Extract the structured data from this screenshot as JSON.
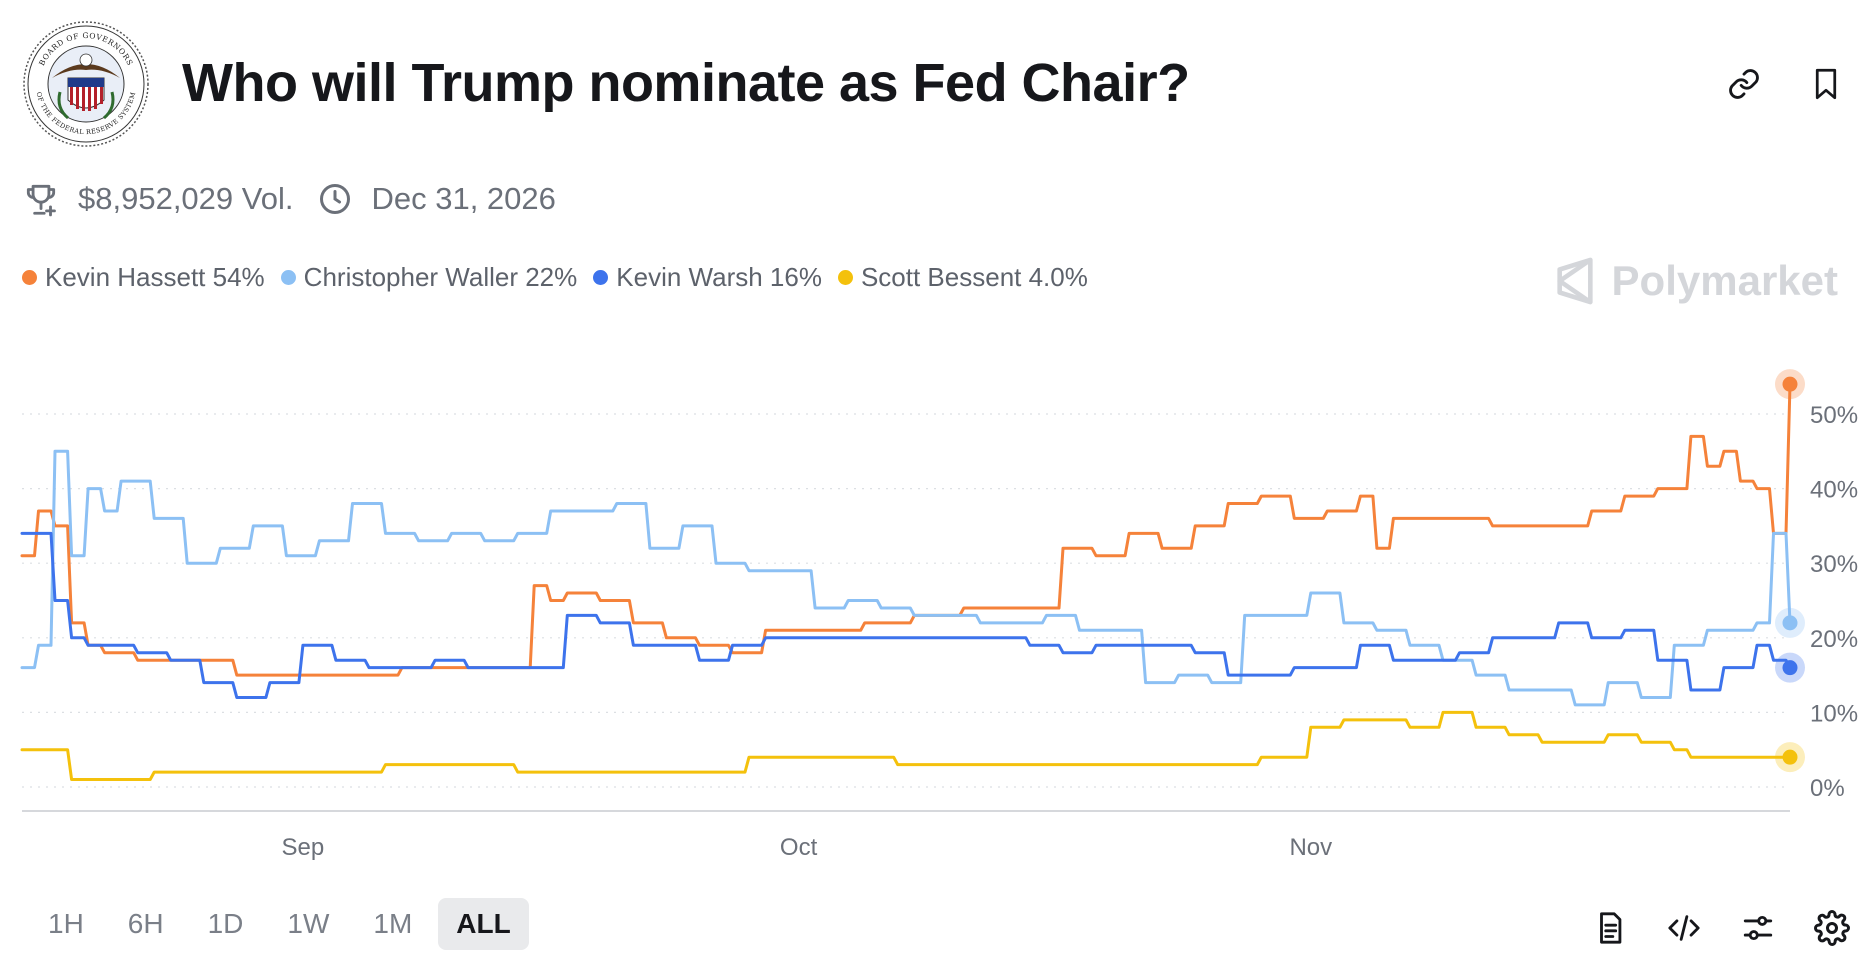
{
  "title": "Who will Trump nominate as Fed Chair?",
  "seal": {
    "text_top": "BOARD OF GOVERNORS",
    "text_bottom": "OF THE FEDERAL RESERVE SYSTEM"
  },
  "meta": {
    "volume": "$8,952,029 Vol.",
    "end_date": "Dec 31, 2026"
  },
  "brand": "Polymarket",
  "legend": [
    {
      "label": "Kevin Hassett 54%",
      "color": "#f5823a"
    },
    {
      "label": "Christopher Waller 22%",
      "color": "#8cc0f4"
    },
    {
      "label": "Kevin Warsh 16%",
      "color": "#3d73ec"
    },
    {
      "label": "Scott Bessent 4.0%",
      "color": "#f4c10c"
    }
  ],
  "time_ranges": [
    "1H",
    "6H",
    "1D",
    "1W",
    "1M",
    "ALL"
  ],
  "active_range": "ALL",
  "icons": {
    "copy_link": "link-icon",
    "bookmark": "bookmark-icon",
    "volume": "trophy-icon",
    "end_date": "clock-icon",
    "document": "document-icon",
    "embed": "code-icon",
    "filters": "sliders-icon",
    "settings": "gear-icon"
  },
  "chart_data": {
    "type": "line",
    "x_range": [
      "2025-08-15",
      "2025-11-30"
    ],
    "x_ticks": [
      {
        "date": "2025-09-01",
        "label": "Sep"
      },
      {
        "date": "2025-10-01",
        "label": "Oct"
      },
      {
        "date": "2025-11-01",
        "label": "Nov"
      }
    ],
    "ylim": [
      0,
      55
    ],
    "y_ticks": [
      0,
      10,
      20,
      30,
      40,
      50
    ],
    "y_tick_labels": [
      "0%",
      "10%",
      "20%",
      "30%",
      "40%",
      "50%"
    ],
    "y_axis_side": "right",
    "grid": "horizontal-dotted",
    "series": [
      {
        "name": "Kevin Hassett",
        "color": "#f5823a",
        "end_value": 54,
        "points": [
          [
            "2025-08-15",
            31
          ],
          [
            "2025-08-16",
            37
          ],
          [
            "2025-08-17",
            35
          ],
          [
            "2025-08-18",
            22
          ],
          [
            "2025-08-19",
            19
          ],
          [
            "2025-08-20",
            18
          ],
          [
            "2025-08-22",
            17
          ],
          [
            "2025-08-25",
            17
          ],
          [
            "2025-08-28",
            15
          ],
          [
            "2025-09-01",
            15
          ],
          [
            "2025-09-04",
            15
          ],
          [
            "2025-09-07",
            16
          ],
          [
            "2025-09-10",
            16
          ],
          [
            "2025-09-13",
            16
          ],
          [
            "2025-09-14",
            16
          ],
          [
            "2025-09-15",
            27
          ],
          [
            "2025-09-16",
            25
          ],
          [
            "2025-09-17",
            26
          ],
          [
            "2025-09-19",
            25
          ],
          [
            "2025-09-21",
            22
          ],
          [
            "2025-09-23",
            20
          ],
          [
            "2025-09-25",
            19
          ],
          [
            "2025-09-27",
            18
          ],
          [
            "2025-09-29",
            21
          ],
          [
            "2025-10-02",
            21
          ],
          [
            "2025-10-05",
            22
          ],
          [
            "2025-10-08",
            23
          ],
          [
            "2025-10-11",
            24
          ],
          [
            "2025-10-14",
            24
          ],
          [
            "2025-10-16",
            24
          ],
          [
            "2025-10-17",
            32
          ],
          [
            "2025-10-19",
            31
          ],
          [
            "2025-10-21",
            34
          ],
          [
            "2025-10-23",
            32
          ],
          [
            "2025-10-25",
            35
          ],
          [
            "2025-10-27",
            38
          ],
          [
            "2025-10-29",
            39
          ],
          [
            "2025-10-31",
            36
          ],
          [
            "2025-11-02",
            37
          ],
          [
            "2025-11-04",
            39
          ],
          [
            "2025-11-05",
            32
          ],
          [
            "2025-11-06",
            36
          ],
          [
            "2025-11-09",
            36
          ],
          [
            "2025-11-12",
            35
          ],
          [
            "2025-11-15",
            35
          ],
          [
            "2025-11-18",
            37
          ],
          [
            "2025-11-20",
            39
          ],
          [
            "2025-11-22",
            40
          ],
          [
            "2025-11-24",
            47
          ],
          [
            "2025-11-25",
            43
          ],
          [
            "2025-11-26",
            45
          ],
          [
            "2025-11-27",
            41
          ],
          [
            "2025-11-28",
            40
          ],
          [
            "2025-11-29",
            34
          ],
          [
            "2025-11-30",
            54
          ]
        ]
      },
      {
        "name": "Christopher Waller",
        "color": "#8cc0f4",
        "end_value": 22,
        "points": [
          [
            "2025-08-15",
            16
          ],
          [
            "2025-08-16",
            19
          ],
          [
            "2025-08-17",
            45
          ],
          [
            "2025-08-18",
            31
          ],
          [
            "2025-08-19",
            40
          ],
          [
            "2025-08-20",
            37
          ],
          [
            "2025-08-21",
            41
          ],
          [
            "2025-08-23",
            36
          ],
          [
            "2025-08-25",
            30
          ],
          [
            "2025-08-27",
            32
          ],
          [
            "2025-08-29",
            35
          ],
          [
            "2025-08-31",
            31
          ],
          [
            "2025-09-02",
            33
          ],
          [
            "2025-09-04",
            38
          ],
          [
            "2025-09-06",
            34
          ],
          [
            "2025-09-08",
            33
          ],
          [
            "2025-09-10",
            34
          ],
          [
            "2025-09-12",
            33
          ],
          [
            "2025-09-14",
            34
          ],
          [
            "2025-09-16",
            37
          ],
          [
            "2025-09-18",
            37
          ],
          [
            "2025-09-20",
            38
          ],
          [
            "2025-09-22",
            32
          ],
          [
            "2025-09-24",
            35
          ],
          [
            "2025-09-26",
            30
          ],
          [
            "2025-09-28",
            29
          ],
          [
            "2025-09-30",
            29
          ],
          [
            "2025-10-02",
            24
          ],
          [
            "2025-10-04",
            25
          ],
          [
            "2025-10-06",
            24
          ],
          [
            "2025-10-08",
            23
          ],
          [
            "2025-10-10",
            23
          ],
          [
            "2025-10-12",
            22
          ],
          [
            "2025-10-14",
            22
          ],
          [
            "2025-10-16",
            23
          ],
          [
            "2025-10-18",
            21
          ],
          [
            "2025-10-20",
            21
          ],
          [
            "2025-10-22",
            14
          ],
          [
            "2025-10-24",
            15
          ],
          [
            "2025-10-26",
            14
          ],
          [
            "2025-10-28",
            23
          ],
          [
            "2025-10-30",
            23
          ],
          [
            "2025-11-01",
            26
          ],
          [
            "2025-11-03",
            22
          ],
          [
            "2025-11-05",
            21
          ],
          [
            "2025-11-07",
            19
          ],
          [
            "2025-11-09",
            17
          ],
          [
            "2025-11-11",
            15
          ],
          [
            "2025-11-13",
            13
          ],
          [
            "2025-11-15",
            13
          ],
          [
            "2025-11-17",
            11
          ],
          [
            "2025-11-19",
            14
          ],
          [
            "2025-11-21",
            12
          ],
          [
            "2025-11-23",
            19
          ],
          [
            "2025-11-25",
            21
          ],
          [
            "2025-11-27",
            21
          ],
          [
            "2025-11-28",
            22
          ],
          [
            "2025-11-29",
            34
          ],
          [
            "2025-11-30",
            22
          ]
        ]
      },
      {
        "name": "Kevin Warsh",
        "color": "#3d73ec",
        "end_value": 16,
        "points": [
          [
            "2025-08-15",
            34
          ],
          [
            "2025-08-16",
            34
          ],
          [
            "2025-08-17",
            25
          ],
          [
            "2025-08-18",
            20
          ],
          [
            "2025-08-19",
            19
          ],
          [
            "2025-08-20",
            19
          ],
          [
            "2025-08-22",
            18
          ],
          [
            "2025-08-24",
            17
          ],
          [
            "2025-08-26",
            14
          ],
          [
            "2025-08-28",
            12
          ],
          [
            "2025-08-30",
            14
          ],
          [
            "2025-09-01",
            19
          ],
          [
            "2025-09-03",
            17
          ],
          [
            "2025-09-05",
            16
          ],
          [
            "2025-09-07",
            16
          ],
          [
            "2025-09-09",
            17
          ],
          [
            "2025-09-11",
            16
          ],
          [
            "2025-09-13",
            16
          ],
          [
            "2025-09-15",
            16
          ],
          [
            "2025-09-17",
            23
          ],
          [
            "2025-09-19",
            22
          ],
          [
            "2025-09-21",
            19
          ],
          [
            "2025-09-23",
            19
          ],
          [
            "2025-09-25",
            17
          ],
          [
            "2025-09-27",
            19
          ],
          [
            "2025-09-29",
            20
          ],
          [
            "2025-10-01",
            20
          ],
          [
            "2025-10-03",
            20
          ],
          [
            "2025-10-05",
            20
          ],
          [
            "2025-10-07",
            20
          ],
          [
            "2025-10-09",
            20
          ],
          [
            "2025-10-11",
            20
          ],
          [
            "2025-10-13",
            20
          ],
          [
            "2025-10-15",
            19
          ],
          [
            "2025-10-17",
            18
          ],
          [
            "2025-10-19",
            19
          ],
          [
            "2025-10-21",
            19
          ],
          [
            "2025-10-23",
            19
          ],
          [
            "2025-10-25",
            18
          ],
          [
            "2025-10-27",
            15
          ],
          [
            "2025-10-29",
            15
          ],
          [
            "2025-10-31",
            16
          ],
          [
            "2025-11-02",
            16
          ],
          [
            "2025-11-04",
            19
          ],
          [
            "2025-11-06",
            17
          ],
          [
            "2025-11-08",
            17
          ],
          [
            "2025-11-10",
            18
          ],
          [
            "2025-11-12",
            20
          ],
          [
            "2025-11-14",
            20
          ],
          [
            "2025-11-16",
            22
          ],
          [
            "2025-11-18",
            20
          ],
          [
            "2025-11-20",
            21
          ],
          [
            "2025-11-22",
            17
          ],
          [
            "2025-11-24",
            13
          ],
          [
            "2025-11-26",
            16
          ],
          [
            "2025-11-28",
            19
          ],
          [
            "2025-11-29",
            17
          ],
          [
            "2025-11-30",
            16
          ]
        ]
      },
      {
        "name": "Scott Bessent",
        "color": "#f4c10c",
        "end_value": 4.0,
        "points": [
          [
            "2025-08-15",
            5
          ],
          [
            "2025-08-17",
            5
          ],
          [
            "2025-08-18",
            1
          ],
          [
            "2025-08-20",
            1
          ],
          [
            "2025-08-23",
            2
          ],
          [
            "2025-08-26",
            2
          ],
          [
            "2025-08-30",
            2
          ],
          [
            "2025-09-03",
            2
          ],
          [
            "2025-09-06",
            3
          ],
          [
            "2025-09-10",
            3
          ],
          [
            "2025-09-14",
            2
          ],
          [
            "2025-09-18",
            2
          ],
          [
            "2025-09-22",
            2
          ],
          [
            "2025-09-26",
            2
          ],
          [
            "2025-09-28",
            4
          ],
          [
            "2025-10-02",
            4
          ],
          [
            "2025-10-05",
            4
          ],
          [
            "2025-10-07",
            3
          ],
          [
            "2025-10-10",
            3
          ],
          [
            "2025-10-14",
            3
          ],
          [
            "2025-10-18",
            3
          ],
          [
            "2025-10-21",
            3
          ],
          [
            "2025-10-25",
            3
          ],
          [
            "2025-10-29",
            4
          ],
          [
            "2025-10-31",
            4
          ],
          [
            "2025-11-01",
            8
          ],
          [
            "2025-11-03",
            9
          ],
          [
            "2025-11-05",
            9
          ],
          [
            "2025-11-07",
            8
          ],
          [
            "2025-11-09",
            10
          ],
          [
            "2025-11-11",
            8
          ],
          [
            "2025-11-13",
            7
          ],
          [
            "2025-11-15",
            6
          ],
          [
            "2025-11-17",
            6
          ],
          [
            "2025-11-19",
            7
          ],
          [
            "2025-11-21",
            6
          ],
          [
            "2025-11-23",
            5
          ],
          [
            "2025-11-24",
            4
          ],
          [
            "2025-11-26",
            4
          ],
          [
            "2025-11-28",
            4
          ],
          [
            "2025-11-30",
            4
          ]
        ]
      }
    ]
  }
}
